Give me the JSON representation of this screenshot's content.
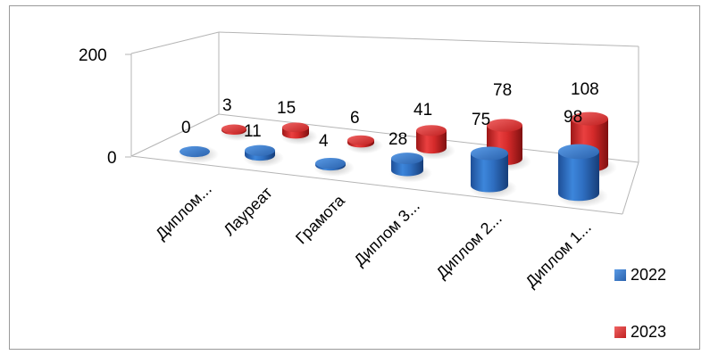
{
  "chart_data": {
    "type": "bar",
    "style": "3d-cylinder",
    "categories": [
      "Диплом...",
      "Лауреат",
      "Грамота",
      "Диплом 3...",
      "Диплом 2...",
      "Диплом 1..."
    ],
    "series": [
      {
        "name": "2022",
        "values": [
          0,
          11,
          4,
          28,
          75,
          98
        ],
        "color": "#2f6fc1"
      },
      {
        "name": "2023",
        "values": [
          3,
          15,
          6,
          41,
          78,
          108
        ],
        "color": "#d42a2a"
      }
    ],
    "y_ticks": [
      "0",
      "200"
    ],
    "ylim": [
      0,
      200
    ],
    "legend_position": "right",
    "grid": false
  }
}
